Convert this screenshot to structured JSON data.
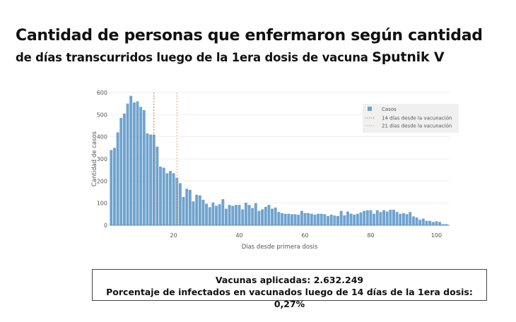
{
  "title": "Cantidad de personas que enfermaron según cantidad",
  "subtitle": "de días transcurridos luego de la 1era dosis de vacuna",
  "subtitle_vaccine": "Sputnik V",
  "stats": {
    "line1": "Vacunas aplicadas: 2.632.249",
    "line2": "Porcentaje de infectados en vacunados luego de 14 días de la 1era dosis: 0,27%"
  },
  "chart_data": {
    "type": "bar",
    "xlabel": "Días desde primera dosis",
    "ylabel": "Cantidad de casos",
    "xlim": [
      0.5,
      104
    ],
    "ylim": [
      0,
      600
    ],
    "xticks": [
      20,
      40,
      60,
      80,
      100
    ],
    "yticks": [
      0,
      100,
      200,
      300,
      400,
      500,
      600
    ],
    "grid": true,
    "legend_position": "top-right",
    "bar_color": "#6fa3cf",
    "series": [
      {
        "name": "Casos",
        "x_start": 1,
        "values": [
          340,
          350,
          420,
          485,
          505,
          550,
          585,
          555,
          560,
          535,
          520,
          415,
          410,
          410,
          355,
          265,
          260,
          235,
          245,
          235,
          215,
          190,
          128,
          165,
          160,
          108,
          138,
          135,
          115,
          97,
          82,
          103,
          88,
          95,
          118,
          75,
          92,
          88,
          92,
          92,
          72,
          102,
          92,
          78,
          100,
          65,
          72,
          83,
          92,
          75,
          80,
          60,
          55,
          52,
          52,
          50,
          50,
          48,
          65,
          55,
          55,
          52,
          48,
          52,
          52,
          50,
          42,
          48,
          44,
          42,
          65,
          45,
          62,
          52,
          48,
          52,
          58,
          65,
          68,
          68,
          52,
          68,
          60,
          68,
          62,
          70,
          70,
          60,
          52,
          55,
          50,
          60,
          40,
          35,
          25,
          30,
          20,
          20,
          15,
          18,
          15,
          5,
          5
        ]
      }
    ],
    "vlines": [
      {
        "x": 14,
        "label": "14 días desde la vacunación",
        "color": "#e0703a"
      },
      {
        "x": 21,
        "label": "21 días desde la vacunación",
        "color": "#f0a860"
      }
    ]
  }
}
